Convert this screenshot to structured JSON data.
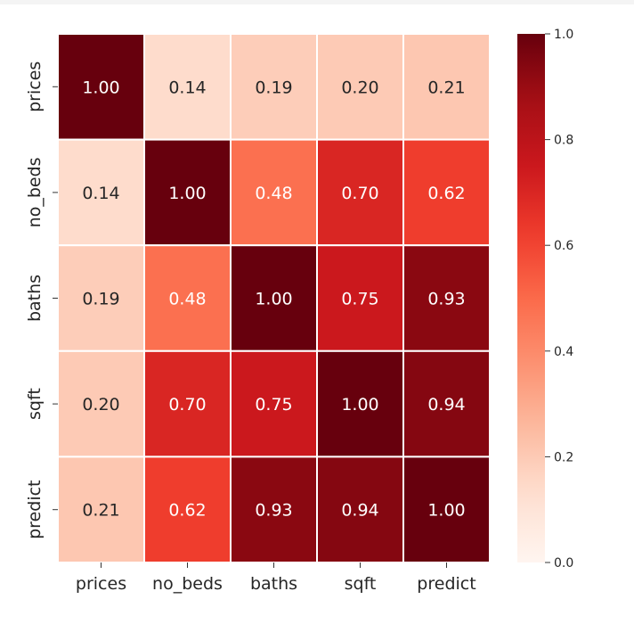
{
  "chart_data": {
    "type": "heatmap",
    "title": "",
    "xlabel": "",
    "ylabel": "",
    "columns": [
      "prices",
      "no_beds",
      "baths",
      "sqft",
      "predict"
    ],
    "rows": [
      "prices",
      "no_beds",
      "baths",
      "sqft",
      "predict"
    ],
    "values": [
      [
        1.0,
        0.14,
        0.19,
        0.2,
        0.21
      ],
      [
        0.14,
        1.0,
        0.48,
        0.7,
        0.62
      ],
      [
        0.19,
        0.48,
        1.0,
        0.75,
        0.93
      ],
      [
        0.2,
        0.7,
        0.75,
        1.0,
        0.94
      ],
      [
        0.21,
        0.62,
        0.93,
        0.94,
        1.0
      ]
    ],
    "value_format": "0.00",
    "colormap": "Reds",
    "vmin": 0.0,
    "vmax": 1.0,
    "colorbar": {
      "ticks": [
        0.0,
        0.2,
        0.4,
        0.6,
        0.8,
        1.0
      ],
      "tick_labels": [
        "0.0",
        "0.2",
        "0.4",
        "0.6",
        "0.8",
        "1.0"
      ]
    },
    "gridlines": "white",
    "annotation_colors": {
      "dark_text": "#262626",
      "light_text": "#ffffff"
    }
  }
}
